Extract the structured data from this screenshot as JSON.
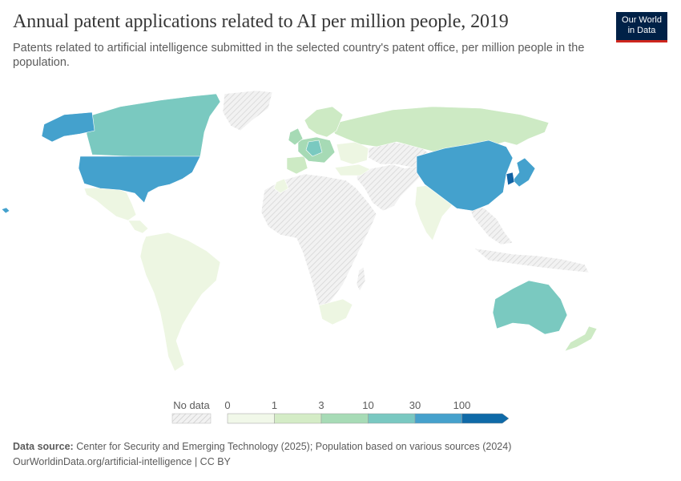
{
  "header": {
    "title": "Annual patent applications related to AI per million people, 2019",
    "subtitle": "Patents related to artificial intelligence submitted in the selected country's patent office, per million people in the population.",
    "logo_line1": "Our World",
    "logo_line2": "in Data"
  },
  "legend": {
    "no_data_label": "No data",
    "bins": [
      {
        "label": "0",
        "color": "#f1f8e9"
      },
      {
        "label": "1",
        "color": "#d4ecc6"
      },
      {
        "label": "3",
        "color": "#a7dbb6"
      },
      {
        "label": "10",
        "color": "#79c8c1"
      },
      {
        "label": "30",
        "color": "#45a1cc"
      },
      {
        "label": "100",
        "color": "#0f6aa8"
      }
    ]
  },
  "colors": {
    "no_data": "#e8e8e8",
    "border": "#ffffff",
    "tier0": "#edf6e2",
    "tier1": "#cdeac4",
    "tier2": "#a6dab5",
    "tier3": "#7ac9c0",
    "tier4": "#44a1cd",
    "tier5": "#1262a3"
  },
  "footer": {
    "source_label": "Data source:",
    "source_text": "Center for Security and Emerging Technology (2025); Population based on various sources (2024)",
    "url_text": "OurWorldinData.org/artificial-intelligence | CC BY"
  }
}
